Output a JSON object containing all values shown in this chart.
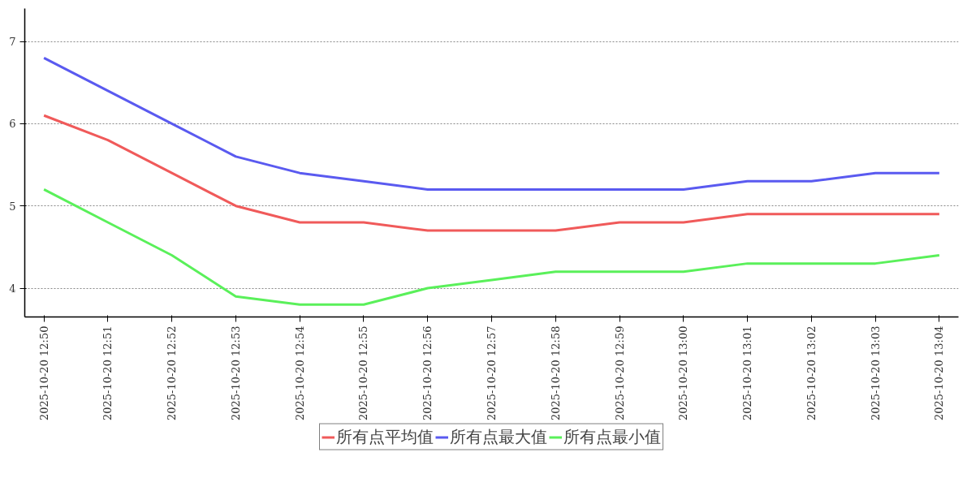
{
  "chart_data": {
    "type": "line",
    "categories": [
      "2025-10-20 12:50",
      "2025-10-20 12:51",
      "2025-10-20 12:52",
      "2025-10-20 12:53",
      "2025-10-20 12:54",
      "2025-10-20 12:55",
      "2025-10-20 12:56",
      "2025-10-20 12:57",
      "2025-10-20 12:58",
      "2025-10-20 12:59",
      "2025-10-20 13:00",
      "2025-10-20 13:01",
      "2025-10-20 13:02",
      "2025-10-20 13:03",
      "2025-10-20 13:04"
    ],
    "series": [
      {
        "name": "所有点平均值",
        "color": "#f05a5a",
        "values": [
          6.1,
          5.8,
          5.4,
          5.0,
          4.8,
          4.8,
          4.7,
          4.7,
          4.7,
          4.8,
          4.8,
          4.9,
          4.9,
          4.9,
          4.9
        ]
      },
      {
        "name": "所有点最大值",
        "color": "#5a5af0",
        "values": [
          6.8,
          6.4,
          6.0,
          5.6,
          5.4,
          5.3,
          5.2,
          5.2,
          5.2,
          5.2,
          5.2,
          5.3,
          5.3,
          5.4,
          5.4
        ]
      },
      {
        "name": "所有点最小值",
        "color": "#5af05a",
        "values": [
          5.2,
          4.8,
          4.4,
          3.9,
          3.8,
          3.8,
          4.0,
          4.1,
          4.2,
          4.2,
          4.2,
          4.3,
          4.3,
          4.3,
          4.4
        ]
      }
    ],
    "ylim": [
      3.65,
      7.4
    ],
    "yticks": [
      4,
      5,
      6,
      7
    ],
    "grid": "y",
    "legend": "bottom",
    "marker": "none",
    "line_style": "solid"
  }
}
